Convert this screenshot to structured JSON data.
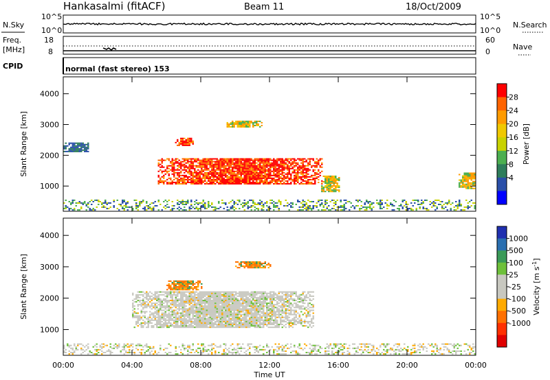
{
  "header": {
    "station": "Hankasalmi (fitACF)",
    "beam": "Beam 11",
    "date": "18/Oct/2009"
  },
  "noise_panel": {
    "left_label": "N.Sky",
    "right_label": "N.Search",
    "left_ticks": [
      "10^5",
      "10^0"
    ],
    "right_ticks": [
      "10^5",
      "10^0"
    ]
  },
  "freq_panel": {
    "label_line1": "Freq.",
    "label_line2": "[MHz]",
    "left_ticks": [
      "18",
      "8"
    ],
    "right_ticks": [
      "60",
      "0"
    ],
    "right_label": "Nave"
  },
  "cpid_panel": {
    "label": "CPID",
    "text": "normal (fast stereo) 153"
  },
  "chart_data": [
    {
      "type": "heatmap",
      "name": "power",
      "ylabel": "Slant Range [km]",
      "yticks": [
        "4000",
        "3000",
        "2000",
        "1000"
      ],
      "ylim": [
        180,
        4550
      ],
      "xlim": [
        0,
        24
      ],
      "colorbar": {
        "label": "Power [dB]",
        "ticks": [
          "28",
          "24",
          "20",
          "16",
          "12",
          "8",
          "4"
        ],
        "colors": [
          "#ff0000",
          "#ff6400",
          "#ff9b00",
          "#f0c800",
          "#c8d200",
          "#4caf50",
          "#2e7d5b",
          "#2a4fa8",
          "#0000ff"
        ]
      },
      "regions": [
        {
          "x": [
            5.5,
            15.0
          ],
          "y": [
            1050,
            1900
          ],
          "level": "high",
          "label": "main echo band 24-28 dB"
        },
        {
          "x": [
            6.5,
            7.5
          ],
          "y": [
            2300,
            2550
          ],
          "level": "high"
        },
        {
          "x": [
            0.0,
            1.5
          ],
          "y": [
            2100,
            2400
          ],
          "level": "low"
        },
        {
          "x": [
            15.0,
            16.0
          ],
          "y": [
            800,
            1300
          ],
          "level": "mid"
        },
        {
          "x": [
            23.0,
            24.0
          ],
          "y": [
            900,
            1400
          ],
          "level": "mid"
        },
        {
          "x": [
            9.5,
            11.5
          ],
          "y": [
            2900,
            3100
          ],
          "level": "mid"
        }
      ]
    },
    {
      "type": "heatmap",
      "name": "velocity",
      "ylabel": "Slant Range [km]",
      "yticks": [
        "4000",
        "3000",
        "2000",
        "1000"
      ],
      "ylim": [
        180,
        4550
      ],
      "xlim": [
        0,
        24
      ],
      "colorbar": {
        "label": "Velocity [m s",
        "label_sup": "-1",
        "label_close": "]",
        "ticks": [
          "1000",
          "500",
          "100",
          "25",
          "-25",
          "-100",
          "-500",
          "-1000"
        ],
        "colors": [
          "#2030b0",
          "#2a6fb0",
          "#3a9a58",
          "#6ec03a",
          "#c8c8c0",
          "#c8c8c0",
          "#ffaa00",
          "#ff7000",
          "#ff3000",
          "#e00000"
        ]
      },
      "regions": [
        {
          "x": [
            4.0,
            14.5
          ],
          "y": [
            1050,
            2200
          ],
          "level": "near-zero"
        },
        {
          "x": [
            6.0,
            8.0
          ],
          "y": [
            2250,
            2550
          ],
          "level": "negative"
        },
        {
          "x": [
            10.0,
            12.0
          ],
          "y": [
            2950,
            3150
          ],
          "level": "negative"
        }
      ]
    }
  ],
  "x_axis": {
    "ticks": [
      "00:00",
      "04:00",
      "08:00",
      "12:00",
      "16:00",
      "20:00",
      "00:00"
    ],
    "label": "Time UT"
  }
}
